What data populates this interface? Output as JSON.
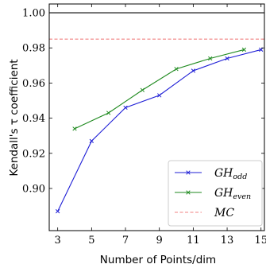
{
  "chart_data": {
    "type": "line",
    "xlabel": "Number of Points/dim",
    "ylabel": "Kendall's τ coefficient",
    "xlim": [
      2.5,
      15.2
    ],
    "ylim": [
      0.876,
      1.005
    ],
    "xticks": [
      3,
      5,
      7,
      9,
      11,
      13,
      15
    ],
    "yticks": [
      0.9,
      0.92,
      0.94,
      0.96,
      0.98,
      1.0
    ],
    "ytick_labels": [
      "0.90",
      "0.92",
      "0.94",
      "0.96",
      "0.98",
      "1.00"
    ],
    "grid": false,
    "legend_position": "lower-right",
    "series": [
      {
        "name": "GH",
        "subscript": "odd",
        "color": "#1f1fd6",
        "style": "solid",
        "marker": "x",
        "x": [
          3,
          5,
          7,
          9,
          11,
          13,
          15
        ],
        "values": [
          0.887,
          0.927,
          0.946,
          0.953,
          0.967,
          0.974,
          0.979
        ]
      },
      {
        "name": "GH",
        "subscript": "even",
        "color": "#1f8a1f",
        "style": "solid",
        "marker": "x",
        "x": [
          4,
          6,
          8,
          10,
          12,
          14
        ],
        "values": [
          0.934,
          0.943,
          0.956,
          0.968,
          0.974,
          0.979
        ]
      },
      {
        "name": "MC",
        "subscript": "",
        "color": "#f08080",
        "style": "dashed",
        "marker": "none",
        "x": [
          2.5,
          15.2
        ],
        "values": [
          0.985,
          0.985
        ]
      }
    ],
    "reference_lines": [
      {
        "y": 1.0,
        "color": "#000000",
        "style": "solid"
      }
    ]
  }
}
